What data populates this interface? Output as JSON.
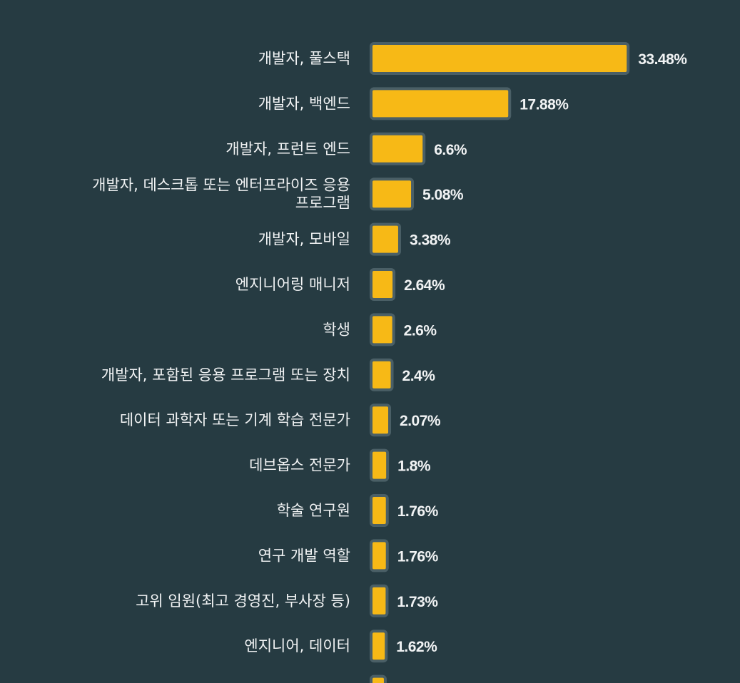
{
  "colors": {
    "background": "#263b42",
    "bar_fill": "#f7b916",
    "bar_border": "#4a5f66",
    "text": "#f1f3f4"
  },
  "chart_data": {
    "type": "bar",
    "orientation": "horizontal",
    "categories": [
      "개발자, 풀스택",
      "개발자, 백엔드",
      "개발자, 프런트 엔드",
      "개발자, 데스크톱 또는 엔터프라이즈 응용 프로그램",
      "개발자, 모바일",
      "엔지니어링 매니저",
      "학생",
      "개발자, 포함된 응용 프로그램 또는 장치",
      "데이터 과학자 또는 기계 학습 전문가",
      "데브옵스 전문가",
      "학술 연구원",
      "연구 개발 역할",
      "고위 임원(최고 경영진, 부사장 등)",
      "엔지니어, 데이터",
      ""
    ],
    "category_lines": [
      [
        "개발자, 풀스택"
      ],
      [
        "개발자, 백엔드"
      ],
      [
        "개발자, 프런트 엔드"
      ],
      [
        "개발자, 데스크톱 또는 엔터프라이즈 응용",
        "프로그램"
      ],
      [
        "개발자, 모바일"
      ],
      [
        "엔지니어링 매니저"
      ],
      [
        "학생"
      ],
      [
        "개발자, 포함된 응용 프로그램 또는 장치"
      ],
      [
        "데이터 과학자 또는 기계 학습 전문가"
      ],
      [
        "데브옵스 전문가"
      ],
      [
        "학술 연구원"
      ],
      [
        "연구 개발 역할"
      ],
      [
        "고위 임원(최고 경영진, 부사장 등)"
      ],
      [
        "엔지니어, 데이터"
      ],
      []
    ],
    "values": [
      33.48,
      17.88,
      6.6,
      5.08,
      3.38,
      2.64,
      2.6,
      2.4,
      2.07,
      1.8,
      1.76,
      1.76,
      1.73,
      1.62,
      1.5
    ],
    "value_labels": [
      "33.48%",
      "17.88%",
      "6.6%",
      "5.08%",
      "3.38%",
      "2.64%",
      "2.6%",
      "2.4%",
      "2.07%",
      "1.8%",
      "1.76%",
      "1.76%",
      "1.73%",
      "1.62%",
      ""
    ],
    "title": "",
    "xlabel": "",
    "ylabel": "",
    "xlim": [
      0,
      35
    ],
    "grid": false,
    "legend": "none"
  }
}
